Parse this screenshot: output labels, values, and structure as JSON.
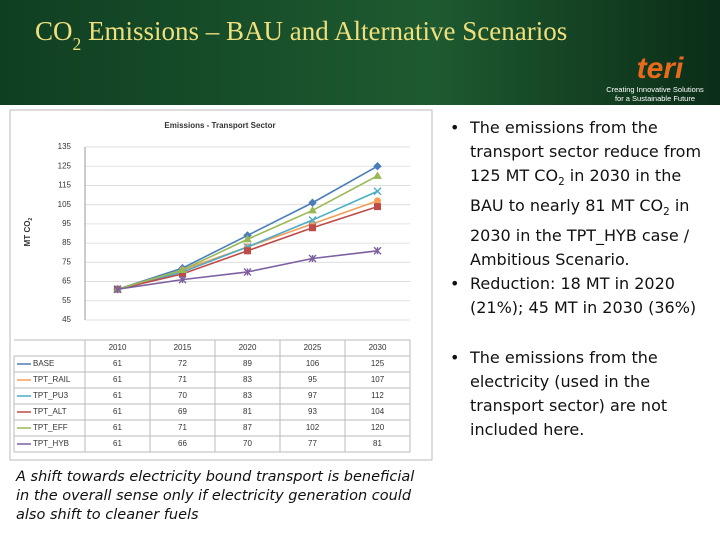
{
  "header": {
    "title": [
      {
        "text": "CO"
      },
      {
        "sub": "2"
      },
      {
        "text": " Emissions – BAU and Alternative Scenarios"
      }
    ],
    "logo": "teri",
    "tagline": [
      "Creating Innovative Solutions",
      "for a Sustainable Future"
    ]
  },
  "chart_data": {
    "type": "line",
    "title": "Emissions - Transport Sector",
    "y_label": [
      {
        "text": "MT CO"
      },
      {
        "sub": "2"
      }
    ],
    "categories": [
      "2010",
      "2015",
      "2020",
      "2025",
      "2030"
    ],
    "ylim": [
      45,
      135
    ],
    "yticks": [
      45,
      55,
      65,
      75,
      85,
      95,
      105,
      115,
      125,
      135
    ],
    "grid": true,
    "series": [
      {
        "name": "BASE",
        "color": "#4a7ebb",
        "marker": "diamond",
        "values": [
          61,
          72,
          89,
          106,
          125
        ]
      },
      {
        "name": "TPT_RAIL",
        "color": "#f59d56",
        "marker": "circle",
        "values": [
          61,
          71,
          83,
          95,
          107
        ]
      },
      {
        "name": "TPT_PU3",
        "color": "#4bacc6",
        "marker": "x",
        "values": [
          61,
          70,
          83,
          97,
          112
        ]
      },
      {
        "name": "TPT_ALT",
        "color": "#be4b48",
        "marker": "square",
        "values": [
          61,
          69,
          81,
          93,
          104
        ]
      },
      {
        "name": "TPT_EFF",
        "color": "#98b954",
        "marker": "triangle",
        "values": [
          61,
          71,
          87,
          102,
          120
        ]
      },
      {
        "name": "TPT_HYB",
        "color": "#7d60a0",
        "marker": "asterisk",
        "values": [
          61,
          66,
          70,
          77,
          81
        ]
      }
    ]
  },
  "bullets": [
    [
      {
        "text": "The emissions from the transport sector reduce from 125 MT CO"
      },
      {
        "sub": "2"
      },
      {
        "text": " in 2030 in the BAU to nearly 81 MT CO"
      },
      {
        "sub": "2"
      },
      {
        "text": " in 2030 in the TPT_HYB case / Ambitious Scenario."
      }
    ],
    [
      {
        "text": "Reduction: 18 MT in 2020 (21%); 45 MT in 2030 (36%)"
      }
    ],
    [
      {
        "text": "The emissions from the electricity (used in the transport sector) are not included here."
      }
    ]
  ],
  "caption": "A shift towards electricity bound transport is beneficial in the overall sense only if electricity generation could also shift to cleaner fuels"
}
